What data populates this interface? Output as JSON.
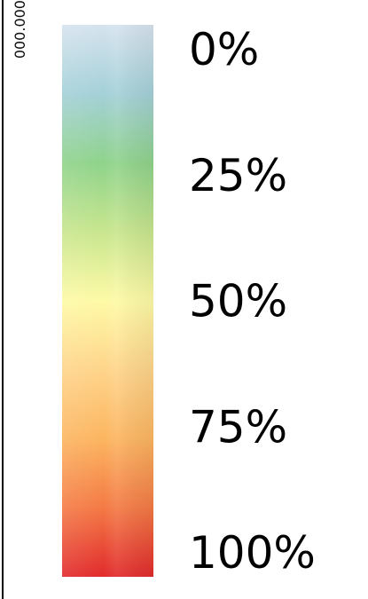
{
  "chart_data": {
    "type": "heatmap",
    "title": "",
    "edge_label": "000.000",
    "color_stops": [
      {
        "value": 0,
        "color": "#d6e3ee"
      },
      {
        "value": 12.5,
        "color": "#a4d0d8"
      },
      {
        "value": 25,
        "color": "#8fd38b"
      },
      {
        "value": 37.5,
        "color": "#c8e68e"
      },
      {
        "value": 50,
        "color": "#fefaa6"
      },
      {
        "value": 62.5,
        "color": "#fed48a"
      },
      {
        "value": 75,
        "color": "#fcb560"
      },
      {
        "value": 87.5,
        "color": "#f47a45"
      },
      {
        "value": 100,
        "color": "#e12a2c"
      }
    ],
    "ticks": [
      {
        "value": 0,
        "label": "0%"
      },
      {
        "value": 25,
        "label": "25%"
      },
      {
        "value": 50,
        "label": "50%"
      },
      {
        "value": 75,
        "label": "75%"
      },
      {
        "value": 100,
        "label": "100%"
      }
    ],
    "range": [
      0,
      100
    ]
  }
}
